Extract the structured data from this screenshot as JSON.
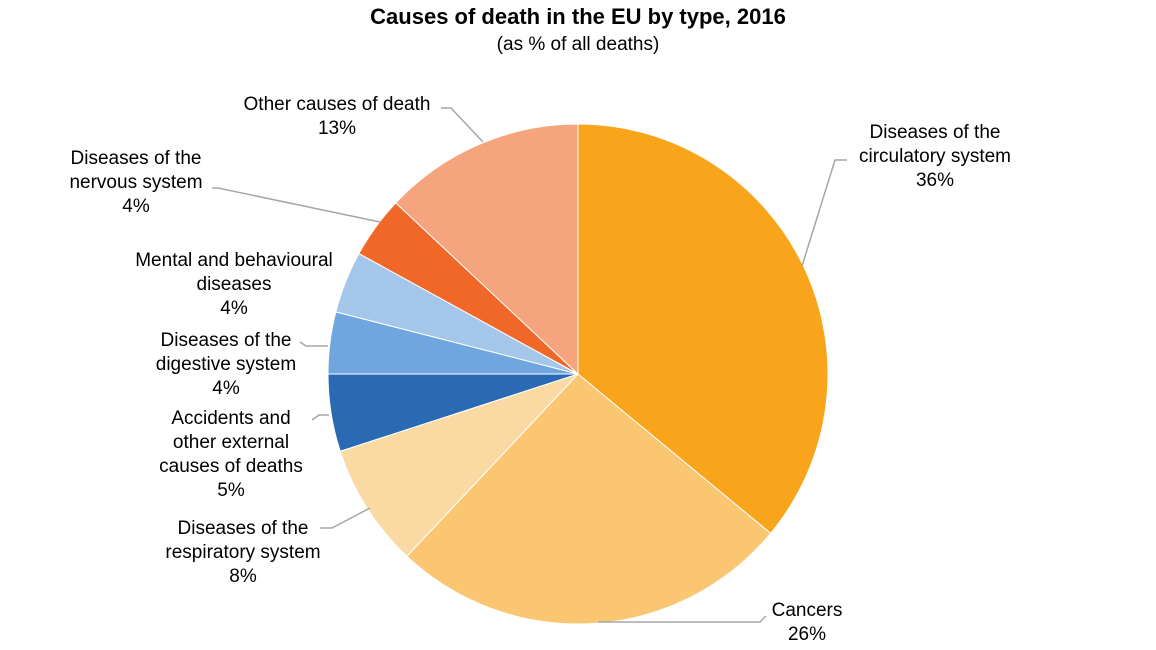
{
  "chart_data": {
    "type": "pie",
    "title": "Causes of death in the EU by type, 2016",
    "subtitle": "(as % of all deaths)",
    "slices": [
      {
        "name": "Diseases of the circulatory system",
        "label_lines": [
          "Diseases of the",
          "circulatory system"
        ],
        "value": 36,
        "value_label": "36%",
        "color": "#f8a51b"
      },
      {
        "name": "Cancers",
        "label_lines": [
          "Cancers"
        ],
        "value": 26,
        "value_label": "26%",
        "color": "#fac672"
      },
      {
        "name": "Diseases of the respiratory system",
        "label_lines": [
          "Diseases of the",
          "respiratory system"
        ],
        "value": 8,
        "value_label": "8%",
        "color": "#fadaa2"
      },
      {
        "name": "Accidents and other external causes of deaths",
        "label_lines": [
          "Accidents and",
          "other external",
          "causes of deaths"
        ],
        "value": 5,
        "value_label": "5%",
        "color": "#2a6ab3"
      },
      {
        "name": "Diseases of the digestive system",
        "label_lines": [
          "Diseases of the",
          "digestive system"
        ],
        "value": 4,
        "value_label": "4%",
        "color": "#70a6df"
      },
      {
        "name": "Mental and behavioural diseases",
        "label_lines": [
          "Mental and behavioural",
          "diseases"
        ],
        "value": 4,
        "value_label": "4%",
        "color": "#a4c6ea"
      },
      {
        "name": "Diseases of the nervous system",
        "label_lines": [
          "Diseases of the",
          "nervous system"
        ],
        "value": 4,
        "value_label": "4%",
        "color": "#f06728"
      },
      {
        "name": "Other causes of death",
        "label_lines": [
          "Other causes of death"
        ],
        "value": 13,
        "value_label": "13%",
        "color": "#f5a47d"
      }
    ],
    "legend": "none",
    "labels": "outside-with-leader-lines"
  }
}
